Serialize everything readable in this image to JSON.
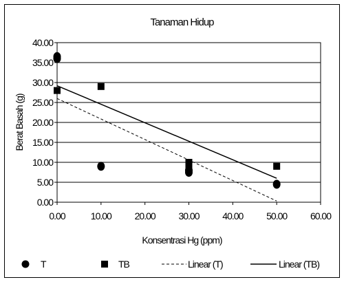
{
  "chart_data": {
    "type": "scatter",
    "title": "Tanaman Hidup",
    "xlabel": "Konsentrasi Hg (ppm)",
    "ylabel": "Berat Basah (g)",
    "xlim": [
      0,
      60
    ],
    "ylim": [
      0,
      40
    ],
    "x_ticks": [
      "0.00",
      "10.00",
      "20.00",
      "30.00",
      "40.00",
      "50.00",
      "60.00"
    ],
    "y_ticks": [
      "0.00",
      "5.00",
      "10.00",
      "15.00",
      "20.00",
      "25.00",
      "30.00",
      "35.00",
      "40.00"
    ],
    "grid": "horizontal",
    "legend_position": "bottom",
    "series": [
      {
        "name": "T",
        "marker": "circle",
        "color": "#000000",
        "x": [
          0,
          0,
          10,
          30,
          30,
          50
        ],
        "y": [
          36.5,
          36.0,
          9.0,
          7.5,
          8.0,
          4.5
        ]
      },
      {
        "name": "TB",
        "marker": "square",
        "color": "#000000",
        "x": [
          0,
          10,
          30,
          30,
          50
        ],
        "y": [
          28.0,
          29.0,
          10.0,
          9.0,
          9.0
        ]
      }
    ],
    "trendlines": [
      {
        "name": "Linear (T)",
        "style": "dashed",
        "color": "#000000",
        "start": [
          0,
          26.0
        ],
        "end": [
          50,
          0.3
        ]
      },
      {
        "name": "Linear (TB)",
        "style": "solid",
        "color": "#000000",
        "start": [
          0,
          29.2
        ],
        "end": [
          50,
          6.0
        ]
      }
    ]
  }
}
